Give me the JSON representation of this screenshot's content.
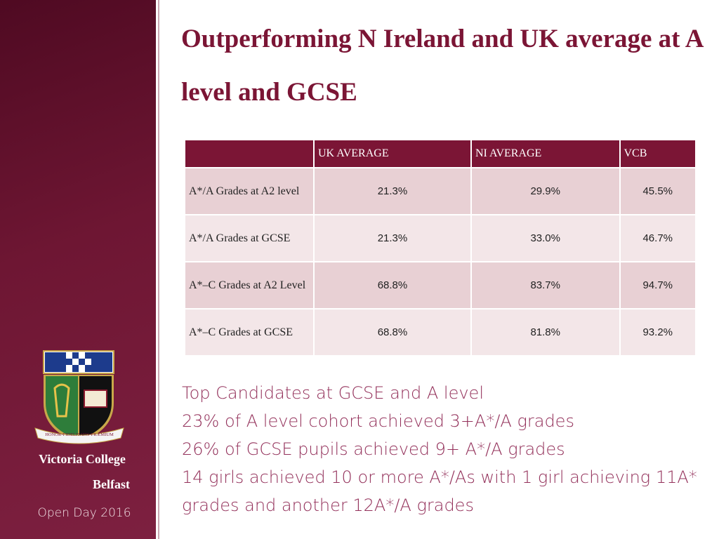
{
  "sidebar": {
    "motto": "HONOR•FIDELITATIS•PRÆMIUM",
    "school": "Victoria College",
    "location": "Belfast",
    "event": "Open Day 2016"
  },
  "title": "Outperforming N Ireland and UK average at A level and GCSE",
  "table": {
    "columns": [
      "UK AVERAGE",
      "NI AVERAGE",
      "VCB"
    ],
    "rows": [
      [
        "A*/A Grades at A2 level",
        "21.3%",
        "29.9%",
        "45.5%"
      ],
      [
        "A*/A Grades at GCSE",
        "21.3%",
        "33.0%",
        "46.7%"
      ],
      [
        "A*–C Grades at A2 Level",
        "68.8%",
        "83.7%",
        "94.7%"
      ],
      [
        "A*–C Grades at GCSE",
        "68.8%",
        "81.8%",
        "93.2%"
      ]
    ]
  },
  "points": [
    "Top Candidates at GCSE and A level",
    "23% of A level cohort achieved 3+A*/A grades",
    "26% of GCSE pupils achieved 9+ A*/A grades",
    "14 girls achieved 10 or more A*/As with 1 girl achieving 11A* grades and another 12A*/A grades"
  ]
}
